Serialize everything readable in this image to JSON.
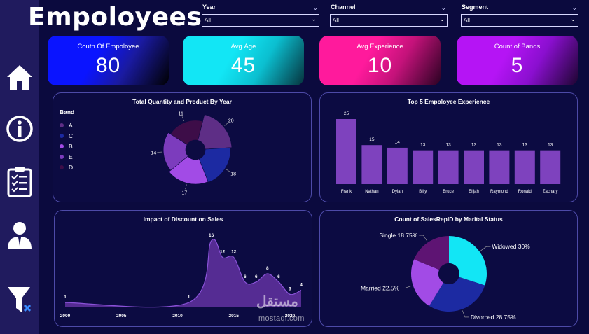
{
  "page": {
    "title": "Empoloyees"
  },
  "filters": [
    {
      "label": "Year",
      "value": "All"
    },
    {
      "label": "Channel",
      "value": "All"
    },
    {
      "label": "Segment",
      "value": "All"
    }
  ],
  "kpis": [
    {
      "label": "Coutn Of Empoloyee",
      "value": "80",
      "gradient": [
        "#0a14ff",
        "#1a1aa0",
        "#000000"
      ]
    },
    {
      "label": "Avg.Age",
      "value": "45",
      "gradient": [
        "#12e6f5",
        "#0bbfd0",
        "#06323c"
      ]
    },
    {
      "label": "Avg.Experience",
      "value": "10",
      "gradient": [
        "#ff1a9c",
        "#c4127a",
        "#2a0222"
      ]
    },
    {
      "label": "Count of Bands",
      "value": "5",
      "gradient": [
        "#b514f5",
        "#8a0fcf",
        "#1d0530"
      ]
    }
  ],
  "sidebar": {
    "items": [
      {
        "icon": "home-icon"
      },
      {
        "icon": "info-icon"
      },
      {
        "icon": "clipboard-checklist-icon"
      },
      {
        "icon": "user-icon"
      },
      {
        "icon": "filter-clear-icon"
      }
    ]
  },
  "watermark": {
    "text": "مستقل",
    "url": "mostaql.com"
  },
  "chart_data": [
    {
      "type": "pie",
      "variant": "rose-donut",
      "title": "Total Quantity and Product By Year",
      "legend_title": "Band",
      "legend_position": "left",
      "slices": [
        {
          "label": "A",
          "value": 20,
          "color": "#5e2e86"
        },
        {
          "label": "C",
          "value": 18,
          "color": "#1c2aa2"
        },
        {
          "label": "B",
          "value": 17,
          "color": "#a24be6"
        },
        {
          "label": "E",
          "value": 14,
          "color": "#7c3cbd"
        },
        {
          "label": "D",
          "value": 11,
          "color": "#3d0d48"
        }
      ]
    },
    {
      "type": "bar",
      "title": "Top 5 Empoloyee Experience",
      "categories": [
        "Frank",
        "Nathan",
        "Dylan",
        "Billy",
        "Bruce",
        "Elijah",
        "Raymond",
        "Ronald",
        "Zachary"
      ],
      "values": [
        25,
        15,
        14,
        13,
        13,
        13,
        13,
        13,
        13
      ],
      "color": "#7e42be",
      "ylim": [
        0,
        25
      ]
    },
    {
      "type": "area",
      "title": "Impact of Discount on Sales",
      "x": [
        2000,
        2011,
        2013,
        2014,
        2015,
        2016,
        2017,
        2018,
        2019,
        2020,
        2021
      ],
      "y": [
        1,
        1,
        16,
        12,
        12,
        6,
        6,
        8,
        6,
        3,
        4
      ],
      "x_ticks": [
        2000,
        2005,
        2010,
        2015,
        2020
      ],
      "xlim": [
        2000,
        2021
      ],
      "ylim": [
        0,
        16
      ],
      "color": "#5a2e98"
    },
    {
      "type": "pie",
      "variant": "donut",
      "title": "Count of SalesRepID by Marital Status",
      "slices": [
        {
          "label": "Widowed",
          "display": "Widowed 30%",
          "value": 30,
          "color": "#12e6f5"
        },
        {
          "label": "Divorced",
          "display": "Divorced 28.75%",
          "value": 28.75,
          "color": "#1c2aa2"
        },
        {
          "label": "Married",
          "display": "Married 22.5%",
          "value": 22.5,
          "color": "#a24be6"
        },
        {
          "label": "Single",
          "display": "Single 18.75%",
          "value": 18.75,
          "color": "#5e1473"
        }
      ]
    }
  ]
}
